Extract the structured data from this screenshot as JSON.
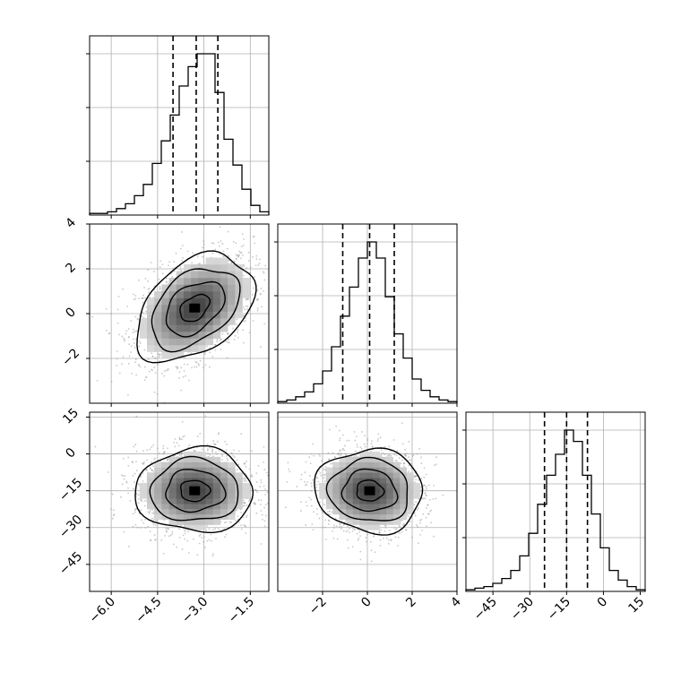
{
  "chart_data": {
    "type": "corner",
    "grid": true,
    "colors": {
      "line": "#000000",
      "grid": "#b0b0b0",
      "scatter": "#9a9a9a"
    },
    "parameters": [
      {
        "axis_range": [
          -6.7,
          -0.9
        ],
        "ticks": [
          -6.0,
          -4.5,
          -3.0,
          -1.5
        ],
        "tick_labels": [
          "−6.0",
          "−4.5",
          "−3.0",
          "−1.5"
        ],
        "quantiles": [
          -4.0,
          -3.25,
          -2.55
        ],
        "histogram": {
          "bin_edges": [
            -6.7,
            -6.41,
            -6.12,
            -5.83,
            -5.54,
            -5.25,
            -4.96,
            -4.67,
            -4.38,
            -4.09,
            -3.8,
            -3.51,
            -3.22,
            -2.93,
            -2.64,
            -2.35,
            -2.06,
            -1.77,
            -1.48,
            -1.19,
            -0.9
          ],
          "counts": [
            1,
            1,
            2,
            4,
            7,
            12,
            19,
            32,
            46,
            62,
            80,
            92,
            100,
            100,
            76,
            47,
            31,
            16,
            6,
            2
          ]
        }
      },
      {
        "axis_range": [
          -4.0,
          4.0
        ],
        "ticks": [
          -2,
          0,
          2,
          4
        ],
        "tick_labels": [
          "−2",
          "0",
          "2",
          "4"
        ],
        "quantiles": [
          -1.1,
          0.1,
          1.2
        ],
        "histogram": {
          "bin_edges": [
            -4.0,
            -3.6,
            -3.2,
            -2.8,
            -2.4,
            -2.0,
            -1.6,
            -1.2,
            -0.8,
            -0.4,
            0.0,
            0.4,
            0.8,
            1.2,
            1.6,
            2.0,
            2.4,
            2.8,
            3.2,
            3.6,
            4.0
          ],
          "counts": [
            1,
            2,
            4,
            7,
            12,
            20,
            35,
            54,
            72,
            90,
            100,
            90,
            66,
            43,
            28,
            15,
            8,
            4,
            2,
            1
          ]
        }
      },
      {
        "axis_range": [
          -56,
          17
        ],
        "ticks": [
          -45,
          -30,
          -15,
          0,
          15
        ],
        "tick_labels": [
          "−45",
          "−30",
          "−15",
          "0",
          "15"
        ],
        "quantiles": [
          -24,
          -15,
          -6.5
        ],
        "histogram": {
          "bin_edges": [
            -56,
            -52.35,
            -48.7,
            -45.05,
            -41.4,
            -37.75,
            -34.1,
            -30.45,
            -26.8,
            -23.15,
            -19.5,
            -15.85,
            -12.2,
            -8.55,
            -4.9,
            -1.25,
            2.4,
            6.05,
            9.7,
            13.35,
            17
          ],
          "counts": [
            1,
            2,
            3,
            5,
            8,
            13,
            22,
            36,
            54,
            72,
            85,
            100,
            93,
            72,
            48,
            27,
            13,
            7,
            3,
            1
          ]
        }
      }
    ],
    "pairs": [
      {
        "x_param": 0,
        "y_param": 1,
        "center": [
          -3.3,
          0.25
        ],
        "sigma": [
          0.95,
          1.2
        ],
        "correlation": 0.4
      },
      {
        "x_param": 0,
        "y_param": 2,
        "center": [
          -3.3,
          -15
        ],
        "sigma": [
          0.95,
          8.5
        ],
        "correlation": 0.0
      },
      {
        "x_param": 1,
        "y_param": 2,
        "center": [
          0.1,
          -15
        ],
        "sigma": [
          1.2,
          8.5
        ],
        "correlation": -0.05
      }
    ],
    "contour_levels_sigma": [
      0.5,
      1.0,
      1.5,
      2.0
    ]
  }
}
